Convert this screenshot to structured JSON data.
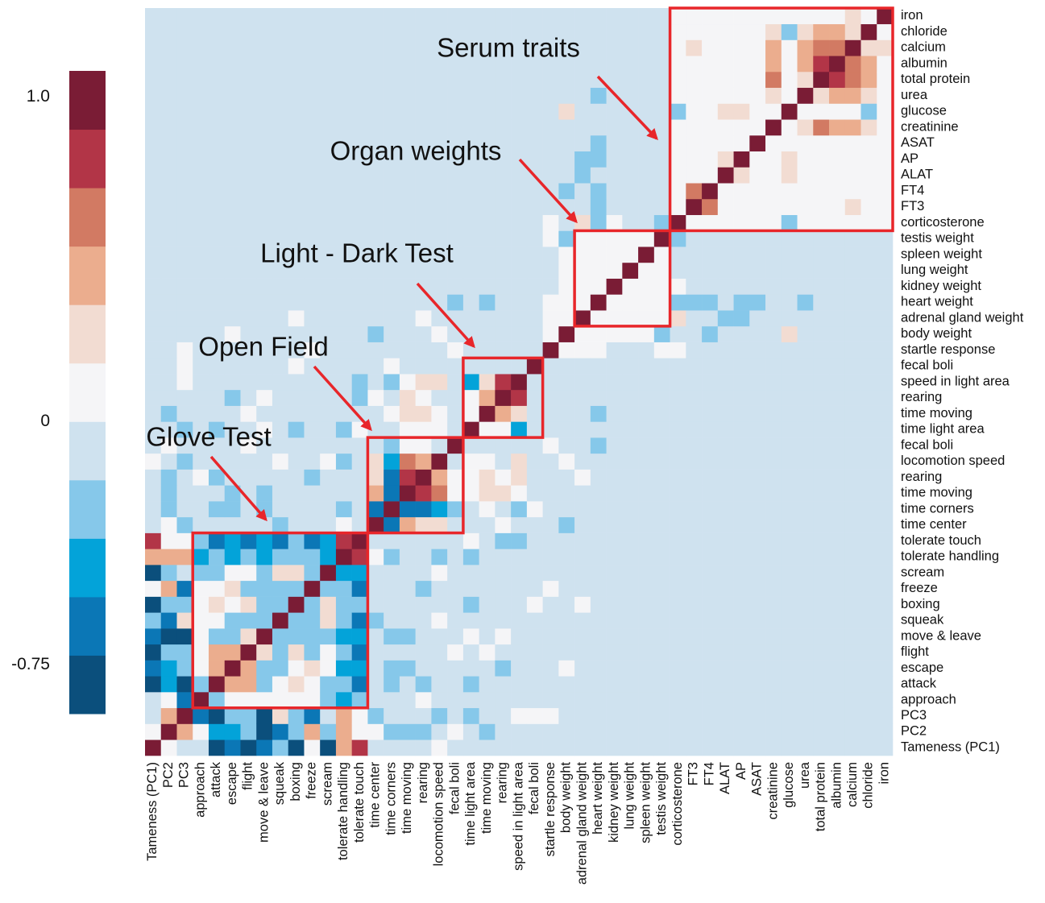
{
  "chart_data": {
    "type": "heatmap",
    "categories": [
      "Tameness (PC1)",
      "PC2",
      "PC3",
      "approach",
      "attack",
      "escape",
      "flight",
      "move & leave",
      "squeak",
      "boxing",
      "freeze",
      "scream",
      "tolerate handling",
      "tolerate touch",
      "time center",
      "time corners",
      "time moving",
      "rearing",
      "locomotion speed",
      "fecal boli",
      "time light area",
      "time moving",
      "rearing",
      "speed in light area",
      "fecal boli",
      "startle response",
      "body weight",
      "adrenal gland weight",
      "heart weight",
      "kidney weight",
      "lung weight",
      "spleen weight",
      "testis weight",
      "corticosterone",
      "FT3",
      "FT4",
      "ALAT",
      "AP",
      "ASAT",
      "creatinine",
      "glucose",
      "urea",
      "total protein",
      "albumin",
      "calcium",
      "chloride",
      "iron"
    ],
    "matrix": [
      [
        1
      ],
      [
        0.09,
        1
      ],
      [
        -0.09,
        0.45,
        1
      ],
      [
        -0.09,
        0.09,
        -0.6,
        1
      ],
      [
        -0.8,
        -0.45,
        -0.8,
        -0.27,
        1
      ],
      [
        -0.6,
        -0.45,
        -0.27,
        0.09,
        0.45,
        1
      ],
      [
        -0.8,
        -0.27,
        -0.27,
        0.09,
        0.45,
        0.45,
        1
      ],
      [
        -0.6,
        -0.8,
        -0.8,
        0.09,
        -0.27,
        -0.27,
        0.27,
        1
      ],
      [
        -0.27,
        -0.6,
        0.27,
        0.09,
        0.09,
        -0.27,
        -0.27,
        -0.27,
        1
      ],
      [
        -0.8,
        -0.27,
        -0.27,
        0.09,
        0.27,
        0.09,
        0.27,
        -0.27,
        -0.27,
        1
      ],
      [
        0.09,
        0.45,
        -0.6,
        0.09,
        0.09,
        0.27,
        -0.27,
        -0.27,
        -0.27,
        -0.27,
        1
      ],
      [
        -0.8,
        -0.27,
        -0.09,
        -0.27,
        -0.27,
        0.09,
        0.09,
        -0.27,
        0.27,
        0.27,
        -0.27,
        1
      ],
      [
        0.45,
        0.45,
        0.45,
        -0.45,
        -0.27,
        -0.45,
        -0.27,
        -0.45,
        -0.27,
        -0.27,
        -0.27,
        -0.45,
        1
      ],
      [
        0.81,
        0.09,
        0.09,
        -0.27,
        -0.6,
        -0.45,
        -0.6,
        -0.45,
        -0.6,
        -0.27,
        -0.6,
        -0.45,
        0.81,
        1
      ],
      [
        -0.09,
        0.09,
        -0.27,
        -0.09,
        -0.09,
        -0.09,
        -0.09,
        -0.09,
        -0.27,
        -0.09,
        -0.09,
        -0.09,
        0.09,
        -0.09,
        1
      ],
      [
        -0.09,
        -0.27,
        -0.09,
        -0.09,
        -0.27,
        -0.27,
        -0.09,
        -0.27,
        -0.09,
        -0.09,
        -0.09,
        -0.09,
        -0.27,
        -0.09,
        -0.6,
        1
      ],
      [
        -0.09,
        -0.27,
        -0.09,
        -0.09,
        -0.09,
        -0.27,
        -0.09,
        -0.27,
        -0.09,
        -0.09,
        -0.09,
        -0.09,
        -0.09,
        -0.09,
        0.45,
        -0.6,
        1
      ],
      [
        -0.09,
        -0.27,
        -0.09,
        0.09,
        -0.27,
        -0.09,
        -0.09,
        -0.09,
        -0.09,
        -0.09,
        -0.27,
        -0.09,
        -0.09,
        -0.09,
        0.27,
        -0.6,
        0.81,
        1
      ],
      [
        0.09,
        -0.09,
        -0.27,
        -0.09,
        -0.09,
        -0.09,
        -0.09,
        -0.09,
        0.09,
        -0.09,
        -0.09,
        0.09,
        -0.27,
        -0.09,
        0.27,
        -0.45,
        0.63,
        0.45,
        1
      ],
      [
        -0.09,
        0.09,
        -0.09,
        -0.09,
        -0.09,
        -0.09,
        0.09,
        -0.09,
        -0.09,
        -0.09,
        -0.09,
        -0.09,
        -0.09,
        -0.09,
        -0.09,
        -0.27,
        0.09,
        0.09,
        -0.09,
        1
      ],
      [
        -0.09,
        -0.09,
        -0.27,
        -0.09,
        -0.27,
        -0.09,
        -0.09,
        0.09,
        -0.09,
        -0.27,
        -0.09,
        -0.09,
        -0.27,
        0.09,
        -0.09,
        -0.09,
        0.09,
        0.09,
        0.09,
        -0.09,
        1
      ],
      [
        -0.09,
        -0.27,
        -0.09,
        -0.09,
        -0.09,
        -0.09,
        0.09,
        -0.09,
        -0.09,
        -0.09,
        -0.09,
        -0.09,
        -0.09,
        -0.09,
        -0.09,
        0.09,
        0.27,
        0.27,
        0.09,
        -0.09,
        0.09,
        1
      ],
      [
        -0.09,
        -0.09,
        -0.09,
        -0.09,
        -0.09,
        -0.27,
        -0.09,
        0.09,
        -0.09,
        -0.09,
        -0.09,
        -0.09,
        -0.09,
        -0.27,
        0.09,
        -0.09,
        0.27,
        0.09,
        -0.09,
        -0.09,
        0.09,
        0.45,
        1
      ],
      [
        -0.09,
        -0.09,
        0.09,
        -0.09,
        -0.09,
        -0.09,
        -0.09,
        -0.09,
        -0.09,
        -0.09,
        -0.09,
        -0.09,
        -0.09,
        -0.27,
        -0.09,
        -0.27,
        0.09,
        0.27,
        0.27,
        -0.09,
        -0.45,
        0.27,
        0.81,
        1
      ],
      [
        -0.09,
        -0.09,
        0.09,
        -0.09,
        -0.09,
        -0.09,
        -0.09,
        -0.09,
        -0.09,
        0.09,
        -0.09,
        -0.09,
        -0.09,
        -0.09,
        -0.09,
        0.09,
        -0.09,
        -0.09,
        -0.09,
        -0.09,
        -0.09,
        -0.09,
        -0.09,
        -0.09,
        1
      ],
      [
        -0.09,
        -0.09,
        0.09,
        -0.09,
        -0.09,
        -0.09,
        -0.09,
        -0.09,
        -0.09,
        -0.09,
        0.09,
        -0.09,
        -0.09,
        -0.09,
        -0.09,
        -0.09,
        -0.09,
        -0.09,
        -0.09,
        0.09,
        -0.09,
        -0.09,
        -0.09,
        -0.09,
        -0.09,
        1
      ],
      [
        -0.09,
        -0.09,
        -0.09,
        -0.09,
        -0.09,
        0.09,
        -0.09,
        -0.09,
        -0.09,
        -0.09,
        -0.09,
        -0.09,
        -0.09,
        -0.09,
        -0.27,
        -0.09,
        -0.09,
        -0.09,
        0.09,
        -0.09,
        -0.09,
        -0.09,
        -0.09,
        -0.09,
        -0.09,
        0.09,
        1
      ],
      [
        -0.09,
        -0.09,
        -0.09,
        -0.09,
        -0.09,
        -0.09,
        -0.09,
        -0.09,
        -0.09,
        0.09,
        -0.09,
        -0.09,
        -0.09,
        -0.09,
        -0.09,
        -0.09,
        -0.09,
        0.09,
        -0.09,
        -0.09,
        -0.09,
        -0.09,
        -0.09,
        -0.09,
        -0.09,
        0.09,
        0.09,
        1
      ],
      [
        -0.09,
        -0.09,
        -0.09,
        -0.09,
        -0.09,
        -0.09,
        -0.09,
        -0.09,
        -0.09,
        -0.09,
        -0.09,
        -0.09,
        -0.09,
        -0.09,
        -0.09,
        -0.09,
        -0.09,
        -0.09,
        -0.09,
        -0.27,
        -0.09,
        -0.27,
        -0.09,
        -0.09,
        -0.09,
        0.09,
        0.09,
        0.09,
        1
      ],
      [
        -0.09,
        -0.09,
        -0.09,
        -0.09,
        -0.09,
        -0.09,
        -0.09,
        -0.09,
        -0.09,
        -0.09,
        -0.09,
        -0.09,
        -0.09,
        -0.09,
        -0.09,
        -0.09,
        -0.09,
        -0.09,
        -0.09,
        -0.09,
        -0.09,
        -0.09,
        -0.09,
        -0.09,
        -0.09,
        -0.09,
        0.09,
        0.09,
        0.09,
        1
      ],
      [
        -0.09,
        -0.09,
        -0.09,
        -0.09,
        -0.09,
        -0.09,
        -0.09,
        -0.09,
        -0.09,
        -0.09,
        -0.09,
        -0.09,
        -0.09,
        -0.09,
        -0.09,
        -0.09,
        -0.09,
        -0.09,
        -0.09,
        -0.09,
        -0.09,
        -0.09,
        -0.09,
        -0.09,
        -0.09,
        -0.09,
        0.09,
        0.09,
        0.09,
        0.09,
        1
      ],
      [
        -0.09,
        -0.09,
        -0.09,
        -0.09,
        -0.09,
        -0.09,
        -0.09,
        -0.09,
        -0.09,
        -0.09,
        -0.09,
        -0.09,
        -0.09,
        -0.09,
        -0.09,
        -0.09,
        -0.09,
        -0.09,
        -0.09,
        -0.09,
        -0.09,
        -0.09,
        -0.09,
        -0.09,
        -0.09,
        -0.09,
        0.09,
        0.09,
        0.09,
        0.09,
        0.09,
        1
      ],
      [
        -0.09,
        -0.09,
        -0.09,
        -0.09,
        -0.09,
        -0.09,
        -0.09,
        -0.09,
        -0.09,
        -0.09,
        -0.09,
        -0.09,
        -0.09,
        -0.09,
        -0.09,
        -0.09,
        -0.09,
        -0.09,
        -0.09,
        -0.09,
        -0.09,
        -0.09,
        -0.09,
        -0.09,
        -0.09,
        0.09,
        -0.27,
        0.09,
        0.09,
        0.09,
        0.09,
        0.09,
        1
      ],
      [
        -0.09,
        -0.09,
        -0.09,
        -0.09,
        -0.09,
        -0.09,
        -0.09,
        -0.09,
        -0.09,
        -0.09,
        -0.09,
        -0.09,
        -0.09,
        -0.09,
        -0.09,
        -0.09,
        -0.09,
        -0.09,
        -0.09,
        -0.09,
        -0.09,
        -0.09,
        -0.09,
        -0.09,
        -0.09,
        0.09,
        -0.09,
        0.27,
        -0.27,
        0.09,
        -0.09,
        -0.09,
        -0.27,
        1
      ],
      [
        -0.09,
        -0.09,
        -0.09,
        -0.09,
        -0.09,
        -0.09,
        -0.09,
        -0.09,
        -0.09,
        -0.09,
        -0.09,
        -0.09,
        -0.09,
        -0.09,
        -0.09,
        -0.09,
        -0.09,
        -0.09,
        -0.09,
        -0.09,
        -0.09,
        -0.09,
        -0.09,
        -0.09,
        -0.09,
        -0.09,
        -0.09,
        -0.09,
        -0.27,
        -0.09,
        -0.09,
        -0.09,
        -0.09,
        0.09,
        1
      ],
      [
        -0.09,
        -0.09,
        -0.09,
        -0.09,
        -0.09,
        -0.09,
        -0.09,
        -0.09,
        -0.09,
        -0.09,
        -0.09,
        -0.09,
        -0.09,
        -0.09,
        -0.09,
        -0.09,
        -0.09,
        -0.09,
        -0.09,
        -0.09,
        -0.09,
        -0.09,
        -0.09,
        -0.09,
        -0.09,
        -0.09,
        -0.27,
        -0.09,
        -0.27,
        -0.09,
        -0.09,
        -0.09,
        -0.09,
        0.09,
        0.63,
        1
      ],
      [
        -0.09,
        -0.09,
        -0.09,
        -0.09,
        -0.09,
        -0.09,
        -0.09,
        -0.09,
        -0.09,
        -0.09,
        -0.09,
        -0.09,
        -0.09,
        -0.09,
        -0.09,
        -0.09,
        -0.09,
        -0.09,
        -0.09,
        -0.09,
        -0.09,
        -0.09,
        -0.09,
        -0.09,
        -0.09,
        -0.09,
        -0.09,
        -0.27,
        -0.09,
        -0.09,
        -0.09,
        -0.09,
        -0.09,
        0.09,
        0.09,
        0.09,
        1
      ],
      [
        -0.09,
        -0.09,
        -0.09,
        -0.09,
        -0.09,
        -0.09,
        -0.09,
        -0.09,
        -0.09,
        -0.09,
        -0.09,
        -0.09,
        -0.09,
        -0.09,
        -0.09,
        -0.09,
        -0.09,
        -0.09,
        -0.09,
        -0.09,
        -0.09,
        -0.09,
        -0.09,
        -0.09,
        -0.09,
        -0.09,
        -0.09,
        -0.27,
        -0.27,
        -0.09,
        -0.09,
        -0.09,
        -0.09,
        0.09,
        0.09,
        0.09,
        0.27,
        1
      ],
      [
        -0.09,
        -0.09,
        -0.09,
        -0.09,
        -0.09,
        -0.09,
        -0.09,
        -0.09,
        -0.09,
        -0.09,
        -0.09,
        -0.09,
        -0.09,
        -0.09,
        -0.09,
        -0.09,
        -0.09,
        -0.09,
        -0.09,
        -0.09,
        -0.09,
        -0.09,
        -0.09,
        -0.09,
        -0.09,
        -0.09,
        -0.09,
        -0.09,
        -0.27,
        -0.09,
        -0.09,
        -0.09,
        -0.09,
        0.09,
        0.09,
        0.09,
        0.09,
        0.09,
        1
      ],
      [
        -0.09,
        -0.09,
        -0.09,
        -0.09,
        -0.09,
        -0.09,
        -0.09,
        -0.09,
        -0.09,
        -0.09,
        -0.09,
        -0.09,
        -0.09,
        -0.09,
        -0.09,
        -0.09,
        -0.09,
        -0.09,
        -0.09,
        -0.09,
        -0.09,
        -0.09,
        -0.09,
        -0.09,
        -0.09,
        -0.09,
        -0.09,
        -0.09,
        -0.09,
        -0.09,
        -0.09,
        -0.09,
        -0.09,
        0.09,
        0.09,
        0.09,
        0.09,
        0.09,
        0.09,
        1
      ],
      [
        -0.09,
        -0.09,
        -0.09,
        -0.09,
        -0.09,
        -0.09,
        -0.09,
        -0.09,
        -0.09,
        -0.09,
        -0.09,
        -0.09,
        -0.09,
        -0.09,
        -0.09,
        -0.09,
        -0.09,
        -0.09,
        -0.09,
        -0.09,
        -0.09,
        -0.09,
        -0.09,
        -0.09,
        -0.09,
        -0.09,
        0.27,
        -0.09,
        -0.09,
        -0.09,
        -0.09,
        -0.09,
        -0.09,
        -0.27,
        0.09,
        0.09,
        0.27,
        0.27,
        0.09,
        0.09,
        1
      ],
      [
        -0.09,
        -0.09,
        -0.09,
        -0.09,
        -0.09,
        -0.09,
        -0.09,
        -0.09,
        -0.09,
        -0.09,
        -0.09,
        -0.09,
        -0.09,
        -0.09,
        -0.09,
        -0.09,
        -0.09,
        -0.09,
        -0.09,
        -0.09,
        -0.09,
        -0.09,
        -0.09,
        -0.09,
        -0.09,
        -0.09,
        -0.09,
        -0.09,
        -0.27,
        -0.09,
        -0.09,
        -0.09,
        -0.09,
        0.09,
        0.09,
        0.09,
        0.09,
        0.09,
        0.09,
        0.27,
        0.09,
        1
      ],
      [
        -0.09,
        -0.09,
        -0.09,
        -0.09,
        -0.09,
        -0.09,
        -0.09,
        -0.09,
        -0.09,
        -0.09,
        -0.09,
        -0.09,
        -0.09,
        -0.09,
        -0.09,
        -0.09,
        -0.09,
        -0.09,
        -0.09,
        -0.09,
        -0.09,
        -0.09,
        -0.09,
        -0.09,
        -0.09,
        -0.09,
        -0.09,
        -0.09,
        -0.09,
        -0.09,
        -0.09,
        -0.09,
        -0.09,
        0.09,
        0.09,
        0.09,
        0.09,
        0.09,
        0.09,
        0.63,
        0.09,
        0.27,
        1
      ],
      [
        -0.09,
        -0.09,
        -0.09,
        -0.09,
        -0.09,
        -0.09,
        -0.09,
        -0.09,
        -0.09,
        -0.09,
        -0.09,
        -0.09,
        -0.09,
        -0.09,
        -0.09,
        -0.09,
        -0.09,
        -0.09,
        -0.09,
        -0.09,
        -0.09,
        -0.09,
        -0.09,
        -0.09,
        -0.09,
        -0.09,
        -0.09,
        -0.09,
        -0.09,
        -0.09,
        -0.09,
        -0.09,
        -0.09,
        0.09,
        0.09,
        0.09,
        0.09,
        0.09,
        0.09,
        0.45,
        0.09,
        0.45,
        0.81,
        1
      ],
      [
        -0.09,
        -0.09,
        -0.09,
        -0.09,
        -0.09,
        -0.09,
        -0.09,
        -0.09,
        -0.09,
        -0.09,
        -0.09,
        -0.09,
        -0.09,
        -0.09,
        -0.09,
        -0.09,
        -0.09,
        -0.09,
        -0.09,
        -0.09,
        -0.09,
        -0.09,
        -0.09,
        -0.09,
        -0.09,
        -0.09,
        -0.09,
        -0.09,
        -0.09,
        -0.09,
        -0.09,
        -0.09,
        -0.09,
        0.09,
        0.27,
        0.09,
        0.09,
        0.09,
        0.09,
        0.45,
        0.09,
        0.45,
        0.63,
        0.63,
        1
      ],
      [
        -0.09,
        -0.09,
        -0.09,
        -0.09,
        -0.09,
        -0.09,
        -0.09,
        -0.09,
        -0.09,
        -0.09,
        -0.09,
        -0.09,
        -0.09,
        -0.09,
        -0.09,
        -0.09,
        -0.09,
        -0.09,
        -0.09,
        -0.09,
        -0.09,
        -0.09,
        -0.09,
        -0.09,
        -0.09,
        -0.09,
        -0.09,
        -0.09,
        -0.09,
        -0.09,
        -0.09,
        -0.09,
        -0.09,
        0.09,
        0.09,
        0.09,
        0.09,
        0.09,
        0.09,
        0.27,
        -0.27,
        0.27,
        0.45,
        0.45,
        0.27,
        1
      ],
      [
        -0.09,
        -0.09,
        -0.09,
        -0.09,
        -0.09,
        -0.09,
        -0.09,
        -0.09,
        -0.09,
        -0.09,
        -0.09,
        -0.09,
        -0.09,
        -0.09,
        -0.09,
        -0.09,
        -0.09,
        -0.09,
        -0.09,
        -0.09,
        -0.09,
        -0.09,
        -0.09,
        -0.09,
        -0.09,
        -0.09,
        -0.09,
        -0.09,
        -0.09,
        -0.09,
        -0.09,
        -0.09,
        -0.09,
        0.09,
        0.09,
        0.09,
        0.09,
        0.09,
        0.09,
        0.09,
        0.09,
        0.09,
        0.09,
        0.09,
        0.27,
        0.09,
        1
      ]
    ],
    "clim": [
      -0.9,
      1.08
    ],
    "cticks": [
      {
        "value": 1,
        "label": "1.0"
      },
      0,
      -0.75
    ],
    "colors": [
      "#0b4f7c",
      "#0b77b6",
      "#03a3d9",
      "#86c8ea",
      "#cfe2ef",
      "#f5f5f7",
      "#f2dcd2",
      "#ebad8e",
      "#d27a63",
      "#b23547",
      "#7a1c35"
    ],
    "annotations": [
      "Serum traits",
      "Organ weights",
      "Light - Dark Test",
      "Open Field",
      "Glove Test"
    ],
    "annotation_color": "#e8262a"
  }
}
